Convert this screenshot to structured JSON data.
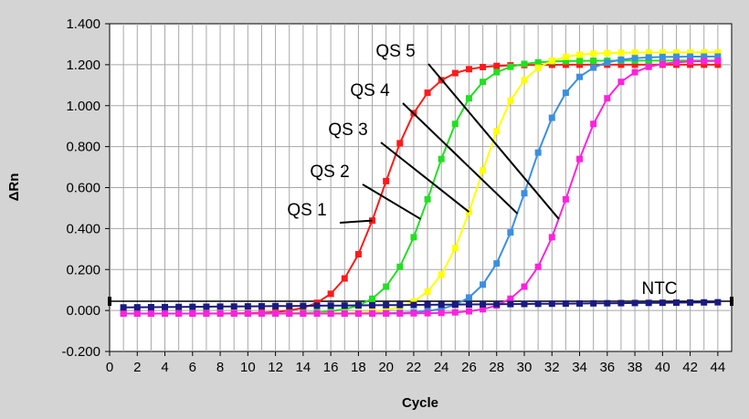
{
  "chart_data": {
    "type": "line",
    "title": "",
    "xlabel": "Cycle",
    "ylabel": "ΔRn",
    "xlim": [
      0,
      45
    ],
    "ylim": [
      -0.2,
      1.4
    ],
    "x_ticks": [
      "0",
      "2",
      "4",
      "6",
      "8",
      "10",
      "12",
      "14",
      "16",
      "18",
      "20",
      "22",
      "24",
      "26",
      "28",
      "30",
      "32",
      "34",
      "36",
      "38",
      "40",
      "42",
      "44"
    ],
    "y_ticks": [
      "-0.200",
      "0.000",
      "0.200",
      "0.400",
      "0.600",
      "0.800",
      "1.000",
      "1.200",
      "1.400"
    ],
    "grid": true,
    "threshold": 0.045,
    "series": [
      {
        "name": "QS 1",
        "color": "#ff1a1a",
        "midpoint": 19.8,
        "max": 1.2
      },
      {
        "name": "QS 2",
        "color": "#22e022",
        "midpoint": 23.3,
        "max": 1.22
      },
      {
        "name": "QS 3",
        "color": "#ffff00",
        "midpoint": 26.7,
        "max": 1.26
      },
      {
        "name": "QS 4",
        "color": "#3b8fe0",
        "midpoint": 30.2,
        "max": 1.24
      },
      {
        "name": "QS 5",
        "color": "#ff22dd",
        "midpoint": 33.3,
        "max": 1.22
      },
      {
        "name": "NTC",
        "color": "#1a1a80",
        "midpoint": null,
        "max": 0.04
      }
    ]
  }
}
